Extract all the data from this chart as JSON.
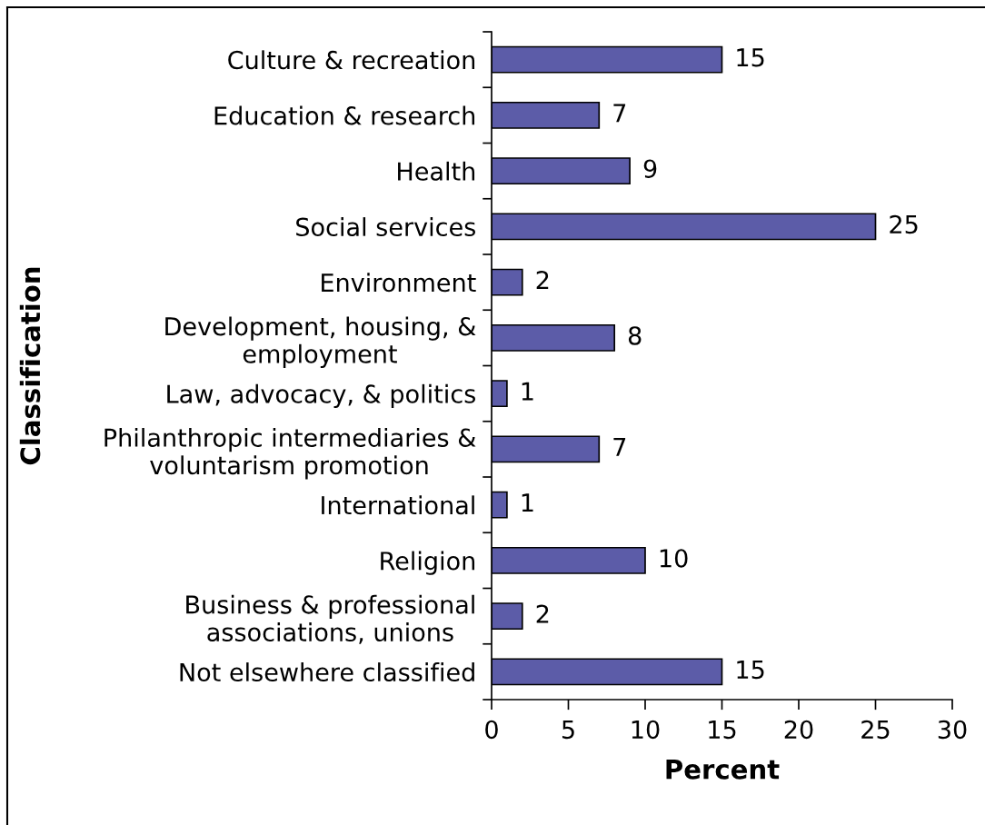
{
  "chart_data": {
    "type": "bar",
    "orientation": "horizontal",
    "xlabel": "Percent",
    "ylabel": "Classification",
    "categories": [
      "Culture & recreation",
      "Education & research",
      "Health",
      "Social services",
      "Environment",
      "Development, housing, &\nemployment",
      "Law, advocacy, & politics",
      "Philanthropic intermediaries &\nvoluntarism promotion",
      "International",
      "Religion",
      "Business & professional\nassociations, unions",
      "Not elsewhere classified"
    ],
    "values": [
      15,
      7,
      9,
      25,
      2,
      8,
      1,
      7,
      1,
      10,
      2,
      15
    ],
    "color": "#5c5ca8",
    "xlim": [
      0,
      30
    ],
    "xticks": [
      0,
      5,
      10,
      15,
      20,
      25,
      30
    ],
    "data_labels": true
  }
}
